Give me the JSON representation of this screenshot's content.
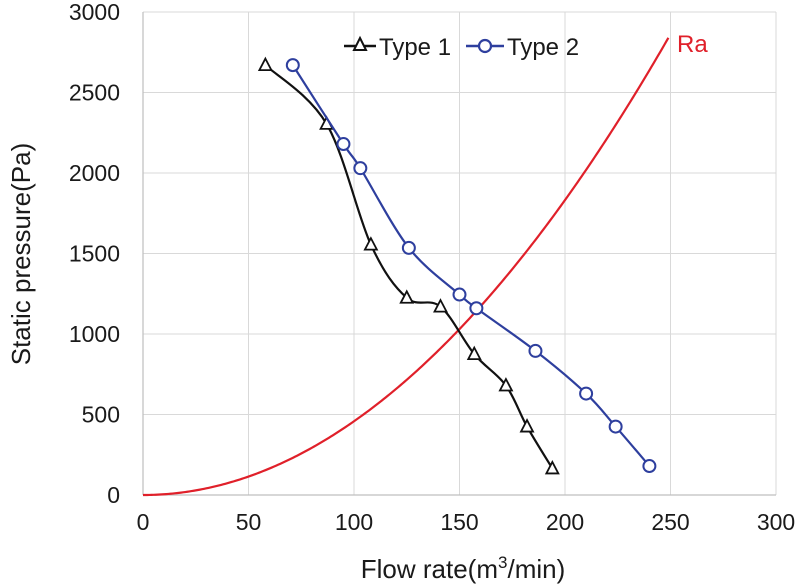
{
  "chart_data": {
    "type": "line",
    "title": "",
    "xlabel": {
      "prefix": "Flow rate(m",
      "sup": "3",
      "suffix": "/min)"
    },
    "ylabel": "Static pressure(Pa)",
    "xlim": [
      0,
      300
    ],
    "ylim": [
      0,
      3000
    ],
    "xticks": [
      0,
      50,
      100,
      150,
      200,
      250,
      300
    ],
    "yticks": [
      0,
      500,
      1000,
      1500,
      2000,
      2500,
      3000
    ],
    "grid": true,
    "legend_position": "top",
    "series": [
      {
        "name": "Type 1",
        "marker": "triangle",
        "color": "#111111",
        "x": [
          58,
          87,
          108,
          125,
          141,
          157,
          172,
          182,
          194
        ],
        "y": [
          2670,
          2305,
          1555,
          1225,
          1170,
          875,
          680,
          425,
          165
        ]
      },
      {
        "name": "Type 2",
        "marker": "circle",
        "color": "#2e3f9e",
        "x": [
          71,
          95,
          103,
          126,
          150,
          158,
          186,
          210,
          224,
          240
        ],
        "y": [
          2670,
          2180,
          2030,
          1535,
          1245,
          1160,
          895,
          630,
          425,
          180
        ]
      },
      {
        "name": "Ra",
        "marker": "none",
        "color": "#e0202a",
        "curve": "quadratic",
        "coefficient": 0.0458,
        "x_range": [
          0,
          249
        ]
      }
    ]
  }
}
